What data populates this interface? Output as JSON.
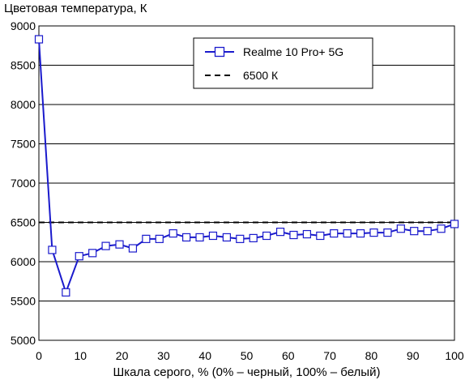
{
  "chart_data": {
    "type": "line",
    "title": "",
    "ylabel": "Цветовая температура, К",
    "xlabel": "Шкала серого, % (0% – черный, 100% – белый)",
    "xlim": [
      0,
      100
    ],
    "ylim": [
      5000,
      9000
    ],
    "x_ticks": [
      "0",
      "10",
      "20",
      "30",
      "40",
      "50",
      "60",
      "70",
      "80",
      "90",
      "100"
    ],
    "y_ticks": [
      "5000",
      "5500",
      "6000",
      "6500",
      "7000",
      "7500",
      "8000",
      "8500",
      "9000"
    ],
    "grid": "horizontal",
    "legend_position": "top-right",
    "series": [
      {
        "name": "Realme 10 Pro+ 5G",
        "color": "#1a1acc",
        "marker": "square",
        "x": [
          0,
          3.2,
          6.5,
          9.7,
          12.9,
          16.1,
          19.4,
          22.6,
          25.8,
          29.0,
          32.3,
          35.5,
          38.7,
          41.9,
          45.2,
          48.4,
          51.6,
          54.8,
          58.1,
          61.3,
          64.5,
          67.7,
          71.0,
          74.2,
          77.4,
          80.6,
          83.9,
          87.1,
          90.3,
          93.5,
          96.8,
          100
        ],
        "y": [
          8830,
          6150,
          5610,
          6070,
          6110,
          6200,
          6220,
          6170,
          6290,
          6290,
          6360,
          6310,
          6310,
          6330,
          6310,
          6290,
          6300,
          6330,
          6380,
          6340,
          6350,
          6330,
          6360,
          6360,
          6360,
          6370,
          6370,
          6420,
          6390,
          6390,
          6420,
          6480
        ]
      },
      {
        "name": "6500 К",
        "color": "#000000",
        "style": "dashed",
        "x": [
          0,
          100
        ],
        "y": [
          6500,
          6500
        ]
      }
    ]
  }
}
